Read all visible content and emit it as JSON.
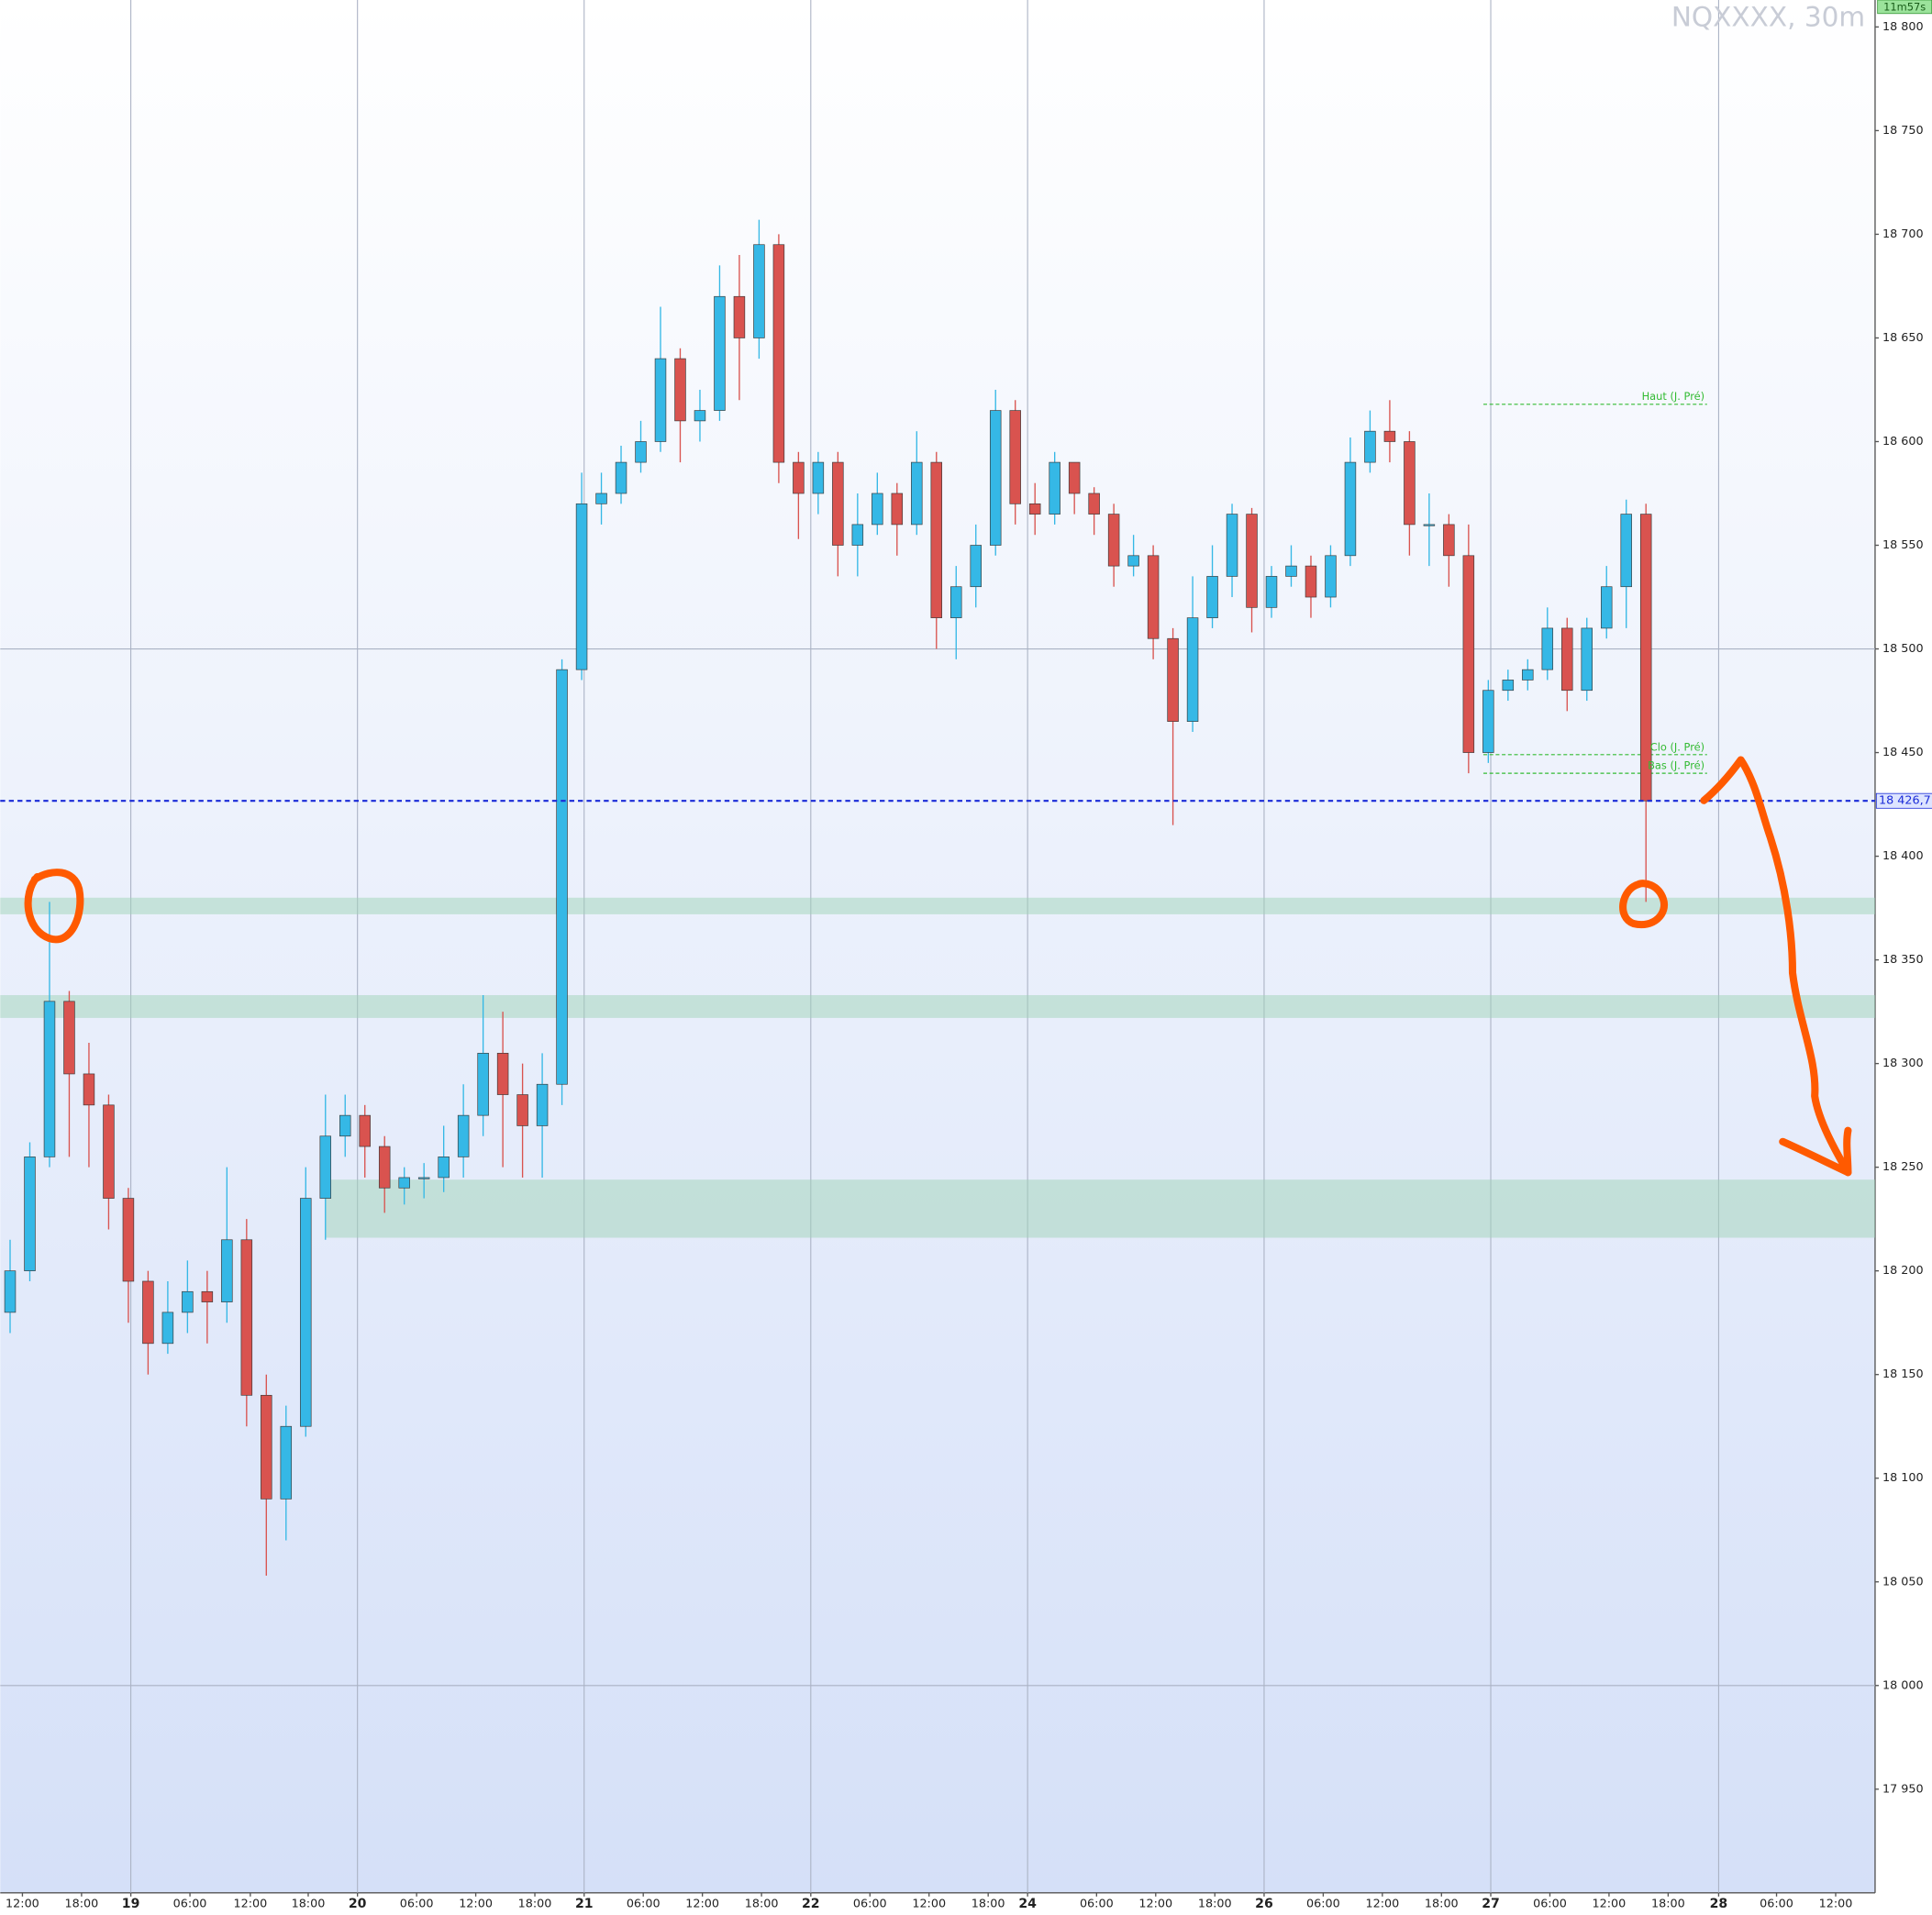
{
  "chart_data": {
    "type": "candlestick",
    "title": "NQXXXX, 30m",
    "timer": "11m57s",
    "up_color": "#35b8e6",
    "down_color": "#d9534f",
    "xlim": [
      0,
      190.25
    ],
    "ylim": [
      17900,
      18813
    ],
    "yticks": [
      {
        "value": 17950,
        "label": "17 950"
      },
      {
        "value": 18000,
        "label": "18 000"
      },
      {
        "value": 18050,
        "label": "18 050"
      },
      {
        "value": 18100,
        "label": "18 100"
      },
      {
        "value": 18150,
        "label": "18 150"
      },
      {
        "value": 18200,
        "label": "18 200"
      },
      {
        "value": 18250,
        "label": "18 250"
      },
      {
        "value": 18300,
        "label": "18 300"
      },
      {
        "value": 18350,
        "label": "18 350"
      },
      {
        "value": 18400,
        "label": "18 400"
      },
      {
        "value": 18450,
        "label": "18 450"
      },
      {
        "value": 18500,
        "label": "18 500"
      },
      {
        "value": 18550,
        "label": "18 550"
      },
      {
        "value": 18600,
        "label": "18 600"
      },
      {
        "value": 18650,
        "label": "18 650"
      },
      {
        "value": 18700,
        "label": "18 700"
      },
      {
        "value": 18750,
        "label": "18 750"
      },
      {
        "value": 18800,
        "label": "18 800"
      }
    ],
    "xticks": [
      {
        "value": 2.25,
        "label": "12:00"
      },
      {
        "value": 8.25,
        "label": "18:00"
      },
      {
        "value": 13.25,
        "label": "19"
      },
      {
        "value": 19.25,
        "label": "06:00"
      },
      {
        "value": 25.375,
        "label": "12:00"
      },
      {
        "value": 31.25,
        "label": "18:00"
      },
      {
        "value": 36.25,
        "label": "20"
      },
      {
        "value": 42.25,
        "label": "06:00"
      },
      {
        "value": 48.25,
        "label": "12:00"
      },
      {
        "value": 54.25,
        "label": "18:00"
      },
      {
        "value": 59.25,
        "label": "21"
      },
      {
        "value": 65.25,
        "label": "06:00"
      },
      {
        "value": 71.25,
        "label": "12:00"
      },
      {
        "value": 77.25,
        "label": "18:00"
      },
      {
        "value": 82.25,
        "label": "22"
      },
      {
        "value": 88.25,
        "label": "06:00"
      },
      {
        "value": 94.25,
        "label": "12:00"
      },
      {
        "value": 100.25,
        "label": "18:00"
      },
      {
        "value": 104.25,
        "label": "24"
      },
      {
        "value": 111.25,
        "label": "06:00"
      },
      {
        "value": 117.25,
        "label": "12:00"
      },
      {
        "value": 123.25,
        "label": "18:00"
      },
      {
        "value": 128.25,
        "label": "26"
      },
      {
        "value": 134.25,
        "label": "06:00"
      },
      {
        "value": 140.25,
        "label": "12:00"
      },
      {
        "value": 146.25,
        "label": "18:00"
      },
      {
        "value": 151.25,
        "label": "27"
      },
      {
        "value": 157.25,
        "label": "06:00"
      },
      {
        "value": 163.25,
        "label": "12:00"
      },
      {
        "value": 169.25,
        "label": "18:00"
      },
      {
        "value": 174.375,
        "label": "28"
      },
      {
        "value": 180.25,
        "label": "06:00"
      },
      {
        "value": 186.25,
        "label": "12:00"
      }
    ],
    "ygrid": [
      18000,
      18500
    ],
    "xgrid": [
      13.25,
      36.25,
      59.25,
      82.25,
      104.25,
      128.25,
      151.25,
      174.375
    ],
    "zones": [
      {
        "from": 18372,
        "to": 18380,
        "x_start": 0
      },
      {
        "from": 18322,
        "to": 18333,
        "x_start": 0
      },
      {
        "from": 18216,
        "to": 18244,
        "x_start": 33
      }
    ],
    "levels": [
      {
        "label": "Haut (J. Pré)",
        "value": 18618,
        "x_start": 150.5,
        "x_end": 173.2
      },
      {
        "label": "Clo (J. Pré)",
        "value": 18449,
        "x_start": 150.5,
        "x_end": 173.2
      },
      {
        "label": "Bas (J. Pré)",
        "value": 18440,
        "x_start": 150.5,
        "x_end": 173.2
      }
    ],
    "last_price": {
      "value": 18426.7,
      "label": "18 426,7"
    },
    "x": [
      1,
      3,
      5,
      7,
      9,
      11,
      13,
      15,
      17,
      19,
      21,
      23,
      25,
      27,
      29,
      31,
      33,
      35,
      37,
      39,
      41,
      43,
      45,
      47,
      49,
      51,
      53,
      55,
      57,
      59,
      61,
      63,
      65,
      67,
      69,
      71,
      73,
      75,
      77,
      79,
      81,
      83,
      85,
      87,
      89,
      91,
      93,
      95,
      97,
      99,
      101,
      103,
      105,
      107,
      109,
      111,
      113,
      115,
      117,
      119,
      121,
      123,
      125,
      127,
      129,
      131,
      133,
      135,
      137,
      139,
      141,
      143,
      145,
      147,
      149,
      151,
      153,
      155,
      157,
      159,
      161,
      163,
      165,
      167
    ],
    "values": [
      [
        18180,
        18215,
        18170,
        18200
      ],
      [
        18200,
        18262,
        18195,
        18255
      ],
      [
        18255,
        18378,
        18250,
        18330
      ],
      [
        18330,
        18335,
        18255,
        18295
      ],
      [
        18295,
        18310,
        18250,
        18280
      ],
      [
        18280,
        18285,
        18220,
        18235
      ],
      [
        18235,
        18240,
        18175,
        18195
      ],
      [
        18195,
        18200,
        18150,
        18165
      ],
      [
        18165,
        18195,
        18160,
        18180
      ],
      [
        18180,
        18205,
        18170,
        18190
      ],
      [
        18190,
        18200,
        18165,
        18185
      ],
      [
        18185,
        18250,
        18175,
        18215
      ],
      [
        18215,
        18225,
        18125,
        18140
      ],
      [
        18140,
        18150,
        18053,
        18090
      ],
      [
        18090,
        18135,
        18070,
        18125
      ],
      [
        18125,
        18250,
        18120,
        18235
      ],
      [
        18235,
        18285,
        18215,
        18265
      ],
      [
        18265,
        18285,
        18255,
        18275
      ],
      [
        18275,
        18280,
        18245,
        18260
      ],
      [
        18260,
        18265,
        18228,
        18240
      ],
      [
        18240,
        18250,
        18232,
        18245
      ],
      [
        18245,
        18252,
        18235,
        18245
      ],
      [
        18245,
        18270,
        18238,
        18255
      ],
      [
        18255,
        18290,
        18245,
        18275
      ],
      [
        18275,
        18333,
        18265,
        18305
      ],
      [
        18305,
        18325,
        18250,
        18285
      ],
      [
        18285,
        18300,
        18245,
        18270
      ],
      [
        18270,
        18305,
        18245,
        18290
      ],
      [
        18290,
        18495,
        18280,
        18490
      ],
      [
        18490,
        18585,
        18485,
        18570
      ],
      [
        18570,
        18585,
        18560,
        18575
      ],
      [
        18575,
        18598,
        18570,
        18590
      ],
      [
        18590,
        18610,
        18585,
        18600
      ],
      [
        18600,
        18665,
        18595,
        18640
      ],
      [
        18640,
        18645,
        18590,
        18610
      ],
      [
        18610,
        18625,
        18600,
        18615
      ],
      [
        18615,
        18685,
        18610,
        18670
      ],
      [
        18670,
        18690,
        18620,
        18650
      ],
      [
        18650,
        18707,
        18640,
        18695
      ],
      [
        18695,
        18700,
        18580,
        18590
      ],
      [
        18590,
        18595,
        18553,
        18575
      ],
      [
        18575,
        18595,
        18565,
        18590
      ],
      [
        18590,
        18595,
        18535,
        18550
      ],
      [
        18550,
        18575,
        18535,
        18560
      ],
      [
        18560,
        18585,
        18555,
        18575
      ],
      [
        18575,
        18580,
        18545,
        18560
      ],
      [
        18560,
        18605,
        18555,
        18590
      ],
      [
        18590,
        18595,
        18500,
        18515
      ],
      [
        18515,
        18540,
        18495,
        18530
      ],
      [
        18530,
        18560,
        18520,
        18550
      ],
      [
        18550,
        18625,
        18545,
        18615
      ],
      [
        18615,
        18620,
        18560,
        18570
      ],
      [
        18570,
        18580,
        18555,
        18565
      ],
      [
        18565,
        18595,
        18560,
        18590
      ],
      [
        18590,
        18590,
        18565,
        18575
      ],
      [
        18575,
        18578,
        18555,
        18565
      ],
      [
        18565,
        18570,
        18530,
        18540
      ],
      [
        18540,
        18555,
        18535,
        18545
      ],
      [
        18545,
        18550,
        18495,
        18505
      ],
      [
        18505,
        18510,
        18415,
        18465
      ],
      [
        18465,
        18535,
        18460,
        18515
      ],
      [
        18515,
        18550,
        18510,
        18535
      ],
      [
        18535,
        18570,
        18525,
        18565
      ],
      [
        18565,
        18568,
        18508,
        18520
      ],
      [
        18520,
        18540,
        18515,
        18535
      ],
      [
        18535,
        18550,
        18530,
        18540
      ],
      [
        18540,
        18545,
        18515,
        18525
      ],
      [
        18525,
        18550,
        18520,
        18545
      ],
      [
        18545,
        18602,
        18540,
        18590
      ],
      [
        18590,
        18615,
        18585,
        18605
      ],
      [
        18605,
        18620,
        18590,
        18600
      ],
      [
        18600,
        18605,
        18545,
        18560
      ],
      [
        18560,
        18575,
        18540,
        18560
      ],
      [
        18560,
        18565,
        18530,
        18545
      ],
      [
        18545,
        18560,
        18440,
        18450
      ],
      [
        18450,
        18485,
        18445,
        18480
      ],
      [
        18480,
        18490,
        18475,
        18485
      ],
      [
        18485,
        18495,
        18480,
        18490
      ],
      [
        18490,
        18520,
        18485,
        18510
      ],
      [
        18510,
        18515,
        18470,
        18480
      ],
      [
        18480,
        18515,
        18475,
        18510
      ],
      [
        18510,
        18540,
        18505,
        18530
      ],
      [
        18530,
        18572,
        18510,
        18565
      ],
      [
        18565,
        18570,
        18378,
        18426.7
      ]
    ]
  }
}
